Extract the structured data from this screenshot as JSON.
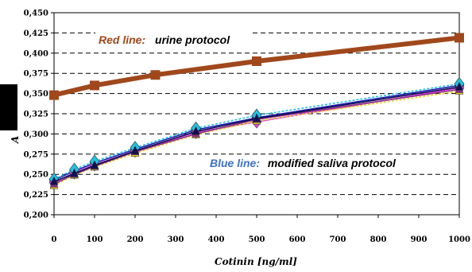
{
  "chart_data": {
    "type": "line",
    "title": "",
    "xlabel": "Cotinin [ng/ml]",
    "ylabel": "A",
    "xlim": [
      0,
      1000
    ],
    "ylim": [
      0.2,
      0.45
    ],
    "x_ticks": [
      0,
      100,
      200,
      300,
      400,
      500,
      600,
      700,
      800,
      900,
      1000
    ],
    "x_tick_labels": [
      "0",
      "100",
      "200",
      "300",
      "400",
      "500",
      "600",
      "700",
      "800",
      "900",
      "1000"
    ],
    "y_ticks": [
      0.2,
      0.225,
      0.25,
      0.275,
      0.3,
      0.325,
      0.35,
      0.375,
      0.4,
      0.425,
      0.45
    ],
    "y_tick_labels": [
      "0,200",
      "0,225",
      "0,250",
      "0,275",
      "0,300",
      "0,325",
      "0,350",
      "0,375",
      "0,400",
      "0,425",
      "0,450"
    ],
    "grid": "horizontal dashed",
    "annotations": [
      {
        "label": "Red line:",
        "text": "urine protocol",
        "color": "#A0481C"
      },
      {
        "label": "Blue line:",
        "text": "modified saliva  protocol",
        "color": "#3F72C8"
      }
    ],
    "series": [
      {
        "color": "#A0481C",
        "marker": "square",
        "x": [
          0,
          100,
          250,
          500,
          1000
        ],
        "y": [
          0.348,
          0.36,
          0.373,
          0.39,
          0.419
        ]
      },
      {
        "color": "#1C1CB4",
        "marker": "diamond",
        "x": [
          0,
          50,
          100,
          200,
          350,
          500,
          1000
        ],
        "y": [
          0.243,
          0.254,
          0.264,
          0.281,
          0.305,
          0.32,
          0.36
        ]
      },
      {
        "color": "#E040E0",
        "marker": "diamond",
        "x": [
          0,
          50,
          100,
          200,
          350,
          500,
          1000
        ],
        "y": [
          0.24,
          0.252,
          0.262,
          0.279,
          0.302,
          0.315,
          0.357
        ]
      },
      {
        "color": "#22C0E0",
        "marker": "diamond",
        "x": [
          0,
          50,
          100,
          200,
          350,
          500,
          1000
        ],
        "y": [
          0.244,
          0.256,
          0.266,
          0.283,
          0.307,
          0.323,
          0.362
        ]
      },
      {
        "color": "#E8D020",
        "marker": "triangle",
        "x": [
          0,
          50,
          100,
          200,
          350,
          500,
          1000
        ],
        "y": [
          0.236,
          0.249,
          0.259,
          0.276,
          0.299,
          0.316,
          0.353
        ]
      },
      {
        "color": "#8B2A8B",
        "marker": "triangle",
        "x": [
          0,
          50,
          100,
          200,
          350,
          500,
          1000
        ],
        "y": [
          0.238,
          0.25,
          0.26,
          0.278,
          0.3,
          0.318,
          0.355
        ]
      },
      {
        "color": "#101050",
        "marker": "triangle",
        "x": [
          0,
          50,
          100,
          200,
          350,
          500,
          1000
        ],
        "y": [
          0.241,
          0.251,
          0.261,
          0.279,
          0.303,
          0.319,
          0.358
        ]
      }
    ]
  }
}
